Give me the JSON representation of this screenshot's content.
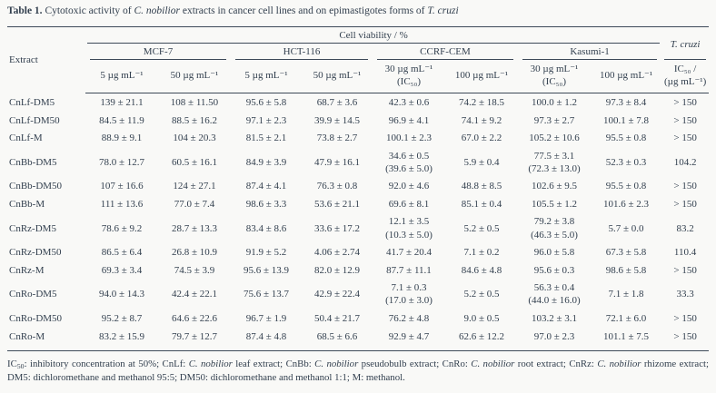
{
  "title": {
    "runs": [
      {
        "t": "Table 1.",
        "b": true
      },
      {
        "t": " Cytotoxic activity of "
      },
      {
        "t": "C. nobilior",
        "i": true
      },
      {
        "t": " extracts in cancer cell lines and on epimastigotes forms of "
      },
      {
        "t": "T. cruzi",
        "i": true
      }
    ]
  },
  "table": {
    "header": {
      "extract": "Extract",
      "cell_viability": "Cell viability / %",
      "t_cruzi": "T. cruzi",
      "groups": [
        {
          "label": "MCF-7",
          "sub": [
            "5 µg mL⁻¹",
            "50 µg mL⁻¹"
          ]
        },
        {
          "label": "HCT-116",
          "sub": [
            "5 µg mL⁻¹",
            "50 µg mL⁻¹"
          ]
        },
        {
          "label": "CCRF-CEM",
          "sub": [
            "30 µg mL⁻¹\n(IC₅₀)",
            "100 µg mL⁻¹"
          ]
        },
        {
          "label": "Kasumi-1",
          "sub": [
            "30 µg mL⁻¹\n(IC₅₀)",
            "100 µg mL⁻¹"
          ]
        }
      ],
      "ic50_header": "IC₅₀ /\n(µg mL⁻¹)"
    },
    "rows": [
      {
        "extract": "CnLf-DM5",
        "values": [
          "139 ± 21.1",
          "108 ± 11.50",
          "95.6 ± 5.8",
          "68.7 ± 3.6",
          "42.3 ± 0.6",
          "74.2 ± 18.5",
          "100.0 ± 1.2",
          "97.3 ± 8.4",
          "> 150"
        ]
      },
      {
        "extract": "CnLf-DM50",
        "values": [
          "84.5 ± 11.9",
          "88.5 ± 16.2",
          "97.1 ± 2.3",
          "39.9 ± 14.5",
          "96.9 ± 4.1",
          "74.1 ± 9.2",
          "97.3 ± 2.7",
          "100.1 ± 7.8",
          "> 150"
        ]
      },
      {
        "extract": "CnLf-M",
        "values": [
          "88.9 ± 9.1",
          "104 ± 20.3",
          "81.5 ± 2.1",
          "73.8 ± 2.7",
          "100.1 ± 2.3",
          "67.0 ± 2.2",
          "105.2 ± 10.6",
          "95.5 ± 0.8",
          "> 150"
        ]
      },
      {
        "extract": "CnBb-DM5",
        "values": [
          "78.0 ± 12.7",
          "60.5 ± 16.1",
          "84.9 ± 3.9",
          "47.9 ± 16.1",
          "34.6 ± 0.5\n(39.6 ± 5.0)",
          "5.9 ± 0.4",
          "77.5 ± 3.1\n(72.3 ± 13.0)",
          "52.3 ± 0.3",
          "104.2"
        ]
      },
      {
        "extract": "CnBb-DM50",
        "values": [
          "107 ± 16.6",
          "124 ± 27.1",
          "87.4 ± 4.1",
          "76.3 ± 0.8",
          "92.0 ± 4.6",
          "48.8 ± 8.5",
          "102.6 ± 9.5",
          "95.5 ± 0.8",
          "> 150"
        ]
      },
      {
        "extract": "CnBb-M",
        "values": [
          "111 ± 13.6",
          "77.0 ± 7.4",
          "98.6 ± 3.3",
          "53.6 ± 21.1",
          "69.6 ± 8.1",
          "85.1 ± 0.4",
          "105.5 ± 1.2",
          "101.6 ± 2.3",
          "> 150"
        ]
      },
      {
        "extract": "CnRz-DM5",
        "values": [
          "78.6 ± 9.2",
          "28.7 ± 13.3",
          "83.4 ± 8.6",
          "33.6 ± 17.2",
          "12.1 ± 3.5\n(10.3 ± 5.0)",
          "5.2 ± 0.5",
          "79.2 ± 3.8\n(46.3 ± 5.0)",
          "5.7 ± 0.0",
          "83.2"
        ]
      },
      {
        "extract": "CnRz-DM50",
        "values": [
          "86.5 ± 6.4",
          "26.8 ± 10.9",
          "91.9 ± 5.2",
          "4.06 ± 2.74",
          "41.7 ± 20.4",
          "7.1 ± 0.2",
          "96.0 ± 5.8",
          "67.3 ± 5.8",
          "110.4"
        ]
      },
      {
        "extract": "CnRz-M",
        "values": [
          "69.3 ± 3.4",
          "74.5 ± 3.9",
          "95.6 ± 13.9",
          "82.0 ± 12.9",
          "87.7 ± 11.1",
          "84.6 ± 4.8",
          "95.6 ± 0.3",
          "98.6 ± 5.8",
          "> 150"
        ]
      },
      {
        "extract": "CnRo-DM5",
        "values": [
          "94.0 ± 14.3",
          "42.4 ± 22.1",
          "75.6 ± 13.7",
          "42.9 ± 22.4",
          "7.1 ± 0.3\n(17.0 ± 3.0)",
          "5.2 ± 0.5",
          "56.3 ± 0.4\n(44.0 ± 16.0)",
          "7.1 ± 1.8",
          "33.3"
        ]
      },
      {
        "extract": "CnRo-DM50",
        "values": [
          "95.2 ± 8.7",
          "64.6 ± 22.6",
          "96.7 ± 1.9",
          "50.4 ± 21.7",
          "76.2 ± 4.8",
          "9.0 ± 0.5",
          "103.2 ± 3.1",
          "72.1 ± 6.0",
          "> 150"
        ]
      },
      {
        "extract": "CnRo-M",
        "values": [
          "83.2 ± 15.9",
          "79.7 ± 12.7",
          "87.4 ± 4.8",
          "68.5 ± 6.6",
          "92.9 ± 4.7",
          "62.6 ± 12.2",
          "97.0 ± 2.3",
          "101.1 ± 7.5",
          "> 150"
        ]
      }
    ]
  },
  "footnote": {
    "runs": [
      {
        "t": "IC"
      },
      {
        "t": "50",
        "sub": true
      },
      {
        "t": ": inhibitory concentration at 50%; CnLf: "
      },
      {
        "t": "C. nobilior",
        "i": true
      },
      {
        "t": " leaf extract; CnBb: "
      },
      {
        "t": "C. nobilior",
        "i": true
      },
      {
        "t": " pseudobulb extract; CnRo: "
      },
      {
        "t": "C. nobilior",
        "i": true
      },
      {
        "t": " root extract; CnRz: "
      },
      {
        "t": "C. nobilior",
        "i": true
      },
      {
        "t": " rhizome extract; DM5: dichloromethane and methanol 95:5; DM50: dichloromethane and methanol 1:1; M: methanol."
      }
    ]
  },
  "colors": {
    "ink": "#33404f",
    "rule": "#3d4958",
    "background": "#f9f9f7"
  }
}
